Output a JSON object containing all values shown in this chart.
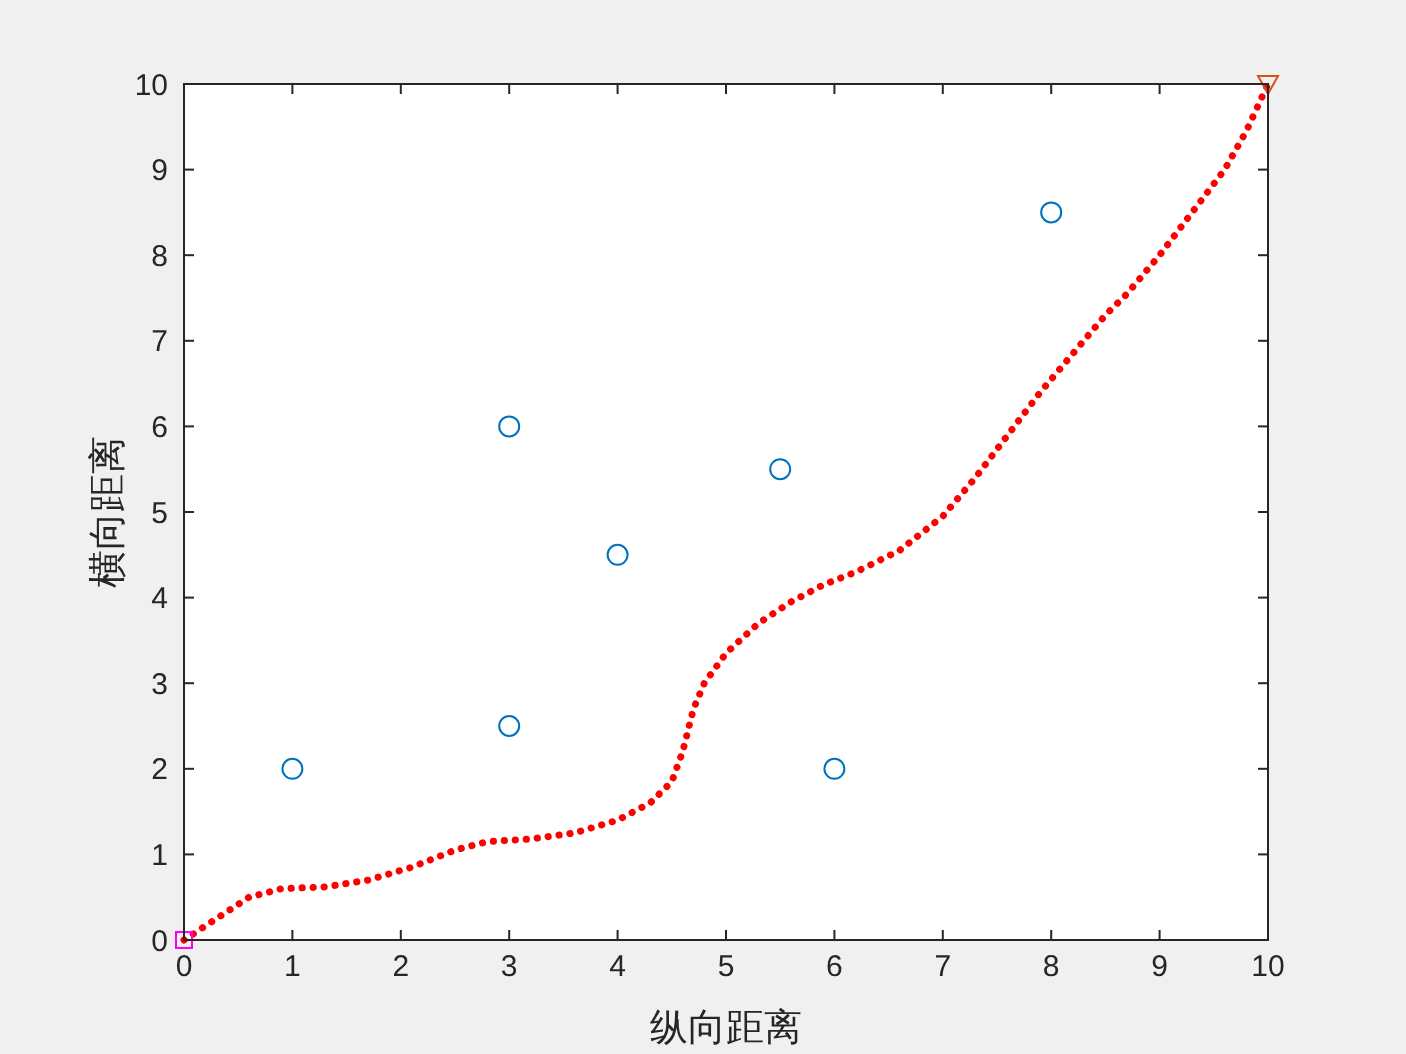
{
  "chart_data": {
    "type": "scatter",
    "xlabel": "纵向距离",
    "ylabel": "横向距离",
    "xlim": [
      0,
      10
    ],
    "ylim": [
      0,
      10
    ],
    "xticks": [
      0,
      1,
      2,
      3,
      4,
      5,
      6,
      7,
      8,
      9,
      10
    ],
    "yticks": [
      0,
      1,
      2,
      3,
      4,
      5,
      6,
      7,
      8,
      9,
      10
    ],
    "grid": false,
    "series": [
      {
        "marker": "circle",
        "color": "#0072bd",
        "x": [
          1,
          3,
          3,
          4,
          5.5,
          6,
          8
        ],
        "values": [
          2,
          2.5,
          6,
          4.5,
          5.5,
          2,
          8.5
        ]
      },
      {
        "type": "line",
        "marker": "none",
        "line_style": "dotted",
        "color": "#ff0000",
        "x": [
          0,
          0.3,
          0.6,
          0.9,
          1.3,
          1.7,
          2.1,
          2.5,
          2.8,
          3.2,
          3.6,
          4.0,
          4.3,
          4.5,
          4.6,
          4.7,
          4.8,
          5.0,
          5.3,
          5.6,
          5.9,
          6.2,
          6.6,
          7.0,
          7.3,
          7.6,
          7.9,
          8.2,
          8.5,
          8.7,
          9.0,
          9.3,
          9.6,
          9.8,
          10
        ],
        "values": [
          0,
          0.25,
          0.5,
          0.6,
          0.62,
          0.7,
          0.85,
          1.05,
          1.15,
          1.18,
          1.25,
          1.4,
          1.6,
          1.85,
          2.2,
          2.7,
          3.0,
          3.35,
          3.7,
          3.95,
          4.15,
          4.3,
          4.55,
          4.95,
          5.4,
          5.9,
          6.4,
          6.85,
          7.3,
          7.55,
          8.0,
          8.5,
          9.0,
          9.45,
          10
        ]
      },
      {
        "marker": "square",
        "color": "#ff00ff",
        "x": [
          0
        ],
        "values": [
          0
        ]
      },
      {
        "marker": "triangle",
        "color": "#d95319",
        "x": [
          10
        ],
        "values": [
          10
        ]
      }
    ]
  }
}
